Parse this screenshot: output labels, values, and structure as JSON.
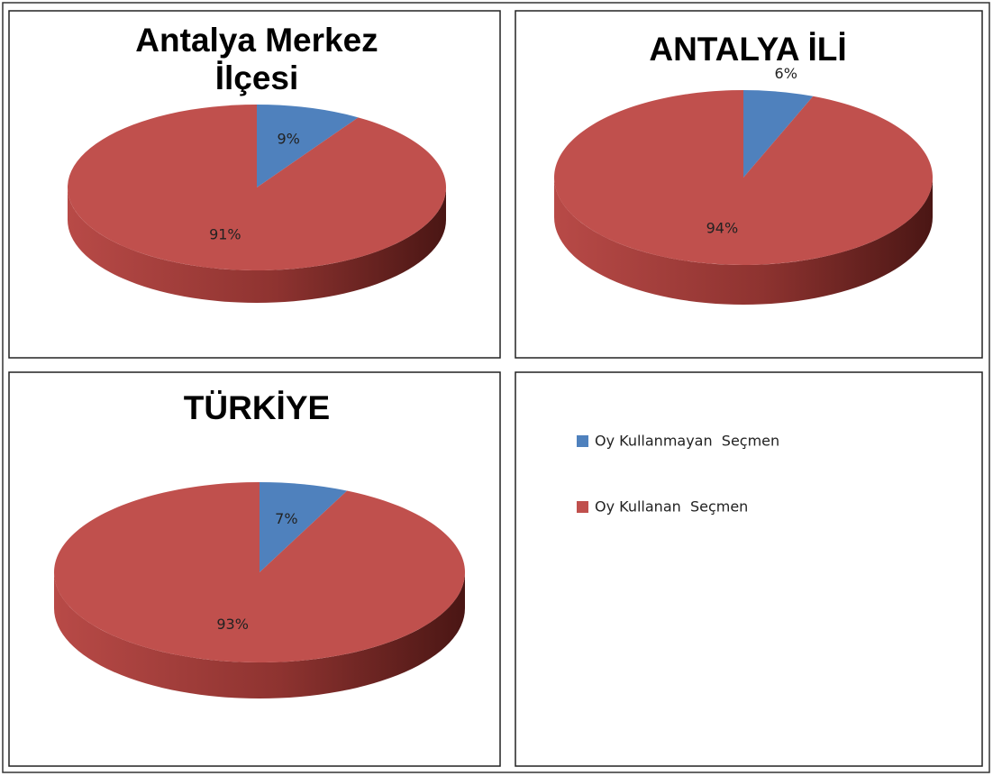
{
  "legend": {
    "labels": [
      "Oy Kullanmayan  Seçmen",
      "Oy Kullanan  Seçmen"
    ],
    "colors": [
      "#4f81bd",
      "#c0504d"
    ]
  },
  "chart_data": [
    {
      "type": "pie",
      "title": "Antalya Merkez İlçesi",
      "values": [
        9,
        91
      ],
      "value_labels": [
        "9%",
        "91%"
      ]
    },
    {
      "type": "pie",
      "title": "ANTALYA İLİ",
      "values": [
        6,
        94
      ],
      "value_labels": [
        "6%",
        "94%"
      ]
    },
    {
      "type": "pie",
      "title": "TÜRKİYE",
      "values": [
        7,
        93
      ],
      "value_labels": [
        "7%",
        "93%"
      ]
    }
  ]
}
